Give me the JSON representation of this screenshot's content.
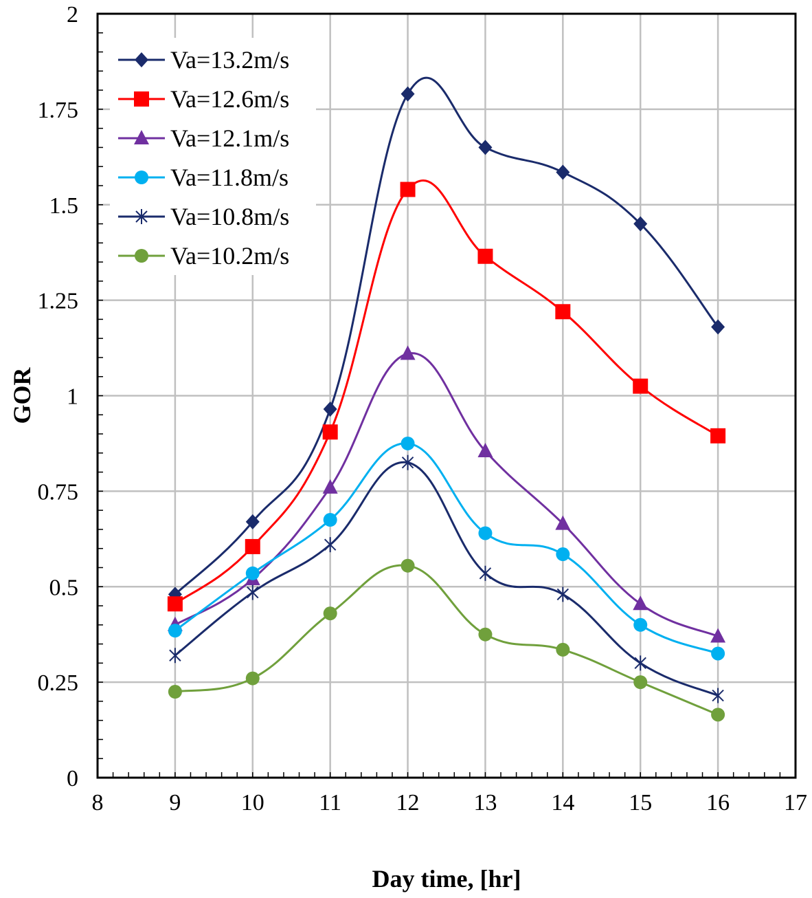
{
  "chart_data": {
    "type": "line",
    "title": "",
    "xlabel": "Day time, [hr]",
    "ylabel": "GOR",
    "xlim": [
      8,
      17
    ],
    "ylim": [
      0,
      2
    ],
    "x_ticks": [
      "8",
      "9",
      "10",
      "11",
      "12",
      "13",
      "14",
      "15",
      "16",
      "17"
    ],
    "y_ticks": [
      "0",
      "0.25",
      "0.5",
      "0.75",
      "1",
      "1.25",
      "1.5",
      "1.75",
      "2"
    ],
    "grid": "on",
    "legend_position": "top-left",
    "x": [
      9,
      10,
      11,
      12,
      13,
      14,
      15,
      16
    ],
    "series": [
      {
        "name": "Va=13.2m/s",
        "marker": "diamond",
        "color": "#1a2b6b",
        "values": [
          0.48,
          0.67,
          0.965,
          1.79,
          1.65,
          1.585,
          1.45,
          1.18
        ]
      },
      {
        "name": "Va=12.6m/s",
        "marker": "square",
        "color": "#ff0000",
        "values": [
          0.455,
          0.605,
          0.905,
          1.54,
          1.365,
          1.22,
          1.025,
          0.895
        ]
      },
      {
        "name": "Va=12.1m/s",
        "marker": "triangle",
        "color": "#7030a0",
        "values": [
          0.4,
          0.52,
          0.76,
          1.11,
          0.855,
          0.665,
          0.455,
          0.37
        ]
      },
      {
        "name": "Va=11.8m/s",
        "marker": "circle",
        "color": "#00b0f0",
        "values": [
          0.385,
          0.535,
          0.675,
          0.875,
          0.64,
          0.585,
          0.4,
          0.325
        ]
      },
      {
        "name": "Va=10.8m/s",
        "marker": "star",
        "color": "#1a2b6b",
        "values": [
          0.32,
          0.485,
          0.61,
          0.825,
          0.535,
          0.48,
          0.3,
          0.215
        ]
      },
      {
        "name": "Va=10.2m/s",
        "marker": "circle",
        "color": "#70a03c",
        "values": [
          0.225,
          0.26,
          0.43,
          0.555,
          0.375,
          0.335,
          0.25,
          0.165
        ]
      }
    ]
  }
}
